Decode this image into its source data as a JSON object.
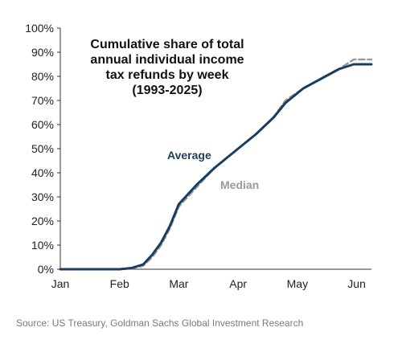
{
  "chart_data": {
    "type": "line",
    "title": [
      "Cumulative share of total",
      "annual individual income",
      "tax refunds by week",
      "(1993-2025)"
    ],
    "x_labels": [
      "Jan",
      "Feb",
      "Mar",
      "Apr",
      "May",
      "Jun"
    ],
    "y_ticks": [
      "0%",
      "10%",
      "20%",
      "30%",
      "40%",
      "50%",
      "60%",
      "70%",
      "80%",
      "90%",
      "100%"
    ],
    "ylim": [
      0,
      100
    ],
    "xlim": [
      0,
      5.25
    ],
    "grid": false,
    "colors": {
      "average": "#1c3d5e",
      "median": "#9a9a9a",
      "axis": "#333333"
    },
    "series": [
      {
        "name": "Average",
        "style": "solid",
        "x": [
          0,
          0.5,
          1.0,
          1.2,
          1.4,
          1.55,
          1.7,
          1.85,
          2.0,
          2.3,
          2.6,
          3.0,
          3.3,
          3.6,
          3.8,
          4.1,
          4.4,
          4.7,
          4.95,
          5.25
        ],
        "values": [
          0,
          0,
          0,
          0.5,
          2,
          6,
          11,
          18,
          27,
          35,
          42,
          50,
          56,
          63,
          69,
          75,
          79,
          83,
          85,
          85
        ]
      },
      {
        "name": "Median",
        "style": "dashed",
        "x": [
          0,
          0.5,
          1.0,
          1.2,
          1.4,
          1.55,
          1.7,
          1.85,
          2.0,
          2.3,
          2.6,
          3.0,
          3.3,
          3.6,
          3.8,
          4.1,
          4.4,
          4.7,
          4.95,
          5.25
        ],
        "values": [
          0,
          0,
          0,
          0.3,
          1.5,
          5,
          10,
          17,
          26,
          34,
          42,
          50,
          56,
          63,
          70,
          75,
          79,
          83,
          87,
          87
        ]
      }
    ]
  },
  "source": "Source: US Treasury, Goldman Sachs Global Investment Research"
}
